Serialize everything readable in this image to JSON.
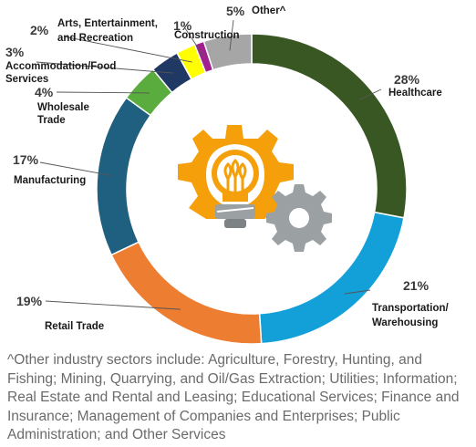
{
  "chart_data": {
    "type": "pie",
    "variant": "donut",
    "slices": [
      {
        "label": "Healthcare",
        "value": 28,
        "value_label": "28%",
        "color": "#385723"
      },
      {
        "label": "Transportation/\nWarehousing",
        "value": 21,
        "value_label": "21%",
        "color": "#13a0d8"
      },
      {
        "label": "Retail Trade",
        "value": 19,
        "value_label": "19%",
        "color": "#ed7d31"
      },
      {
        "label": "Manufacturing",
        "value": 17,
        "value_label": "17%",
        "color": "#1f5f7f"
      },
      {
        "label": "Wholesale\nTrade",
        "value": 4,
        "value_label": "4%",
        "color": "#5aac3e"
      },
      {
        "label": "Accommodation/Food\nServices",
        "value": 3,
        "value_label": "3%",
        "color": "#203864"
      },
      {
        "label": "Arts, Entertainment,\nand Recreation",
        "value": 2,
        "value_label": "2%",
        "color": "#ffff00"
      },
      {
        "label": "Construction",
        "value": 1,
        "value_label": "1%",
        "color": "#a0208f"
      },
      {
        "label": "Other^",
        "value": 5,
        "value_label": "5%",
        "color": "#a6a6a6"
      }
    ],
    "center_icons": [
      "lightbulb-gear-icon",
      "gear-icon"
    ],
    "center_colors": {
      "gear_primary": "#f5a00a",
      "gear_secondary": "#9ba0a3"
    }
  },
  "footnote": "^Other industry sectors include: Agriculture, Forestry, Hunting, and Fishing; Mining, Quarrying, and Oil/Gas Extraction; Utilities; Information; Real Estate and Rental and Leasing; Educational Services; Finance and Insurance; Management of Companies and Enterprises; Public Administration; and Other Services"
}
